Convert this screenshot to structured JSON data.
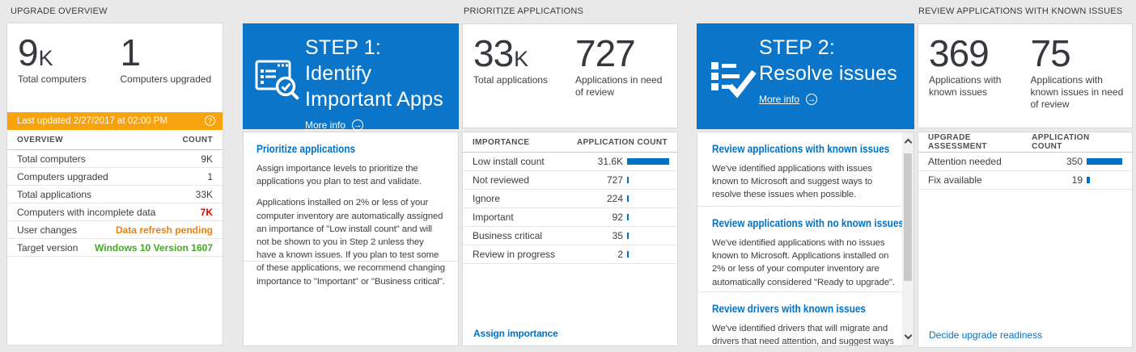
{
  "page": {
    "colors": {
      "accent": "#0072c6",
      "tile_blue": "#0a75c9",
      "bar_blue": "#0072c6",
      "banner_orange": "#f8a20d",
      "alert_red": "#e40000",
      "warn_orange": "#ef7d08",
      "ok_green": "#3dab1f",
      "background": "#e9e9e9"
    }
  },
  "icons": {
    "help": "?",
    "arrow": "→"
  },
  "headers": {
    "col1": "UPGRADE OVERVIEW",
    "col3": "PRIORITIZE APPLICATIONS",
    "col5": "REVIEW APPLICATIONS WITH KNOWN ISSUES"
  },
  "overview": {
    "stats": [
      {
        "value": "9",
        "suffix": "K",
        "label": "Total computers"
      },
      {
        "value": "1",
        "suffix": "",
        "label": "Computers upgraded"
      }
    ],
    "banner": {
      "text": "Last updated 2/27/2017 at 02:00 PM"
    },
    "table": {
      "headers": [
        "OVERVIEW",
        "COUNT"
      ],
      "rows": [
        {
          "label": "Total computers",
          "value": "9K",
          "style": ""
        },
        {
          "label": "Computers upgraded",
          "value": "1",
          "style": ""
        },
        {
          "label": "Total applications",
          "value": "33K",
          "style": ""
        },
        {
          "label": "Computers with incomplete data",
          "value": "7K",
          "style": "red"
        },
        {
          "label": "User changes",
          "value": "Data refresh pending",
          "style": "orange"
        },
        {
          "label": "Target version",
          "value": "Windows 10 Version 1607",
          "style": "green"
        }
      ]
    }
  },
  "step1": {
    "title": "STEP 1: Identify Important Apps",
    "more_info": "More info",
    "panel": {
      "heading": "Prioritize applications",
      "paragraphs": [
        "Assign importance levels to prioritize the applications you plan to test and validate.",
        "Applications installed on 2% or less of your computer inventory are automatically assigned an importance of \"Low install count\" and will not be shown to you in Step 2 unless they have a known issues. If you plan to test some of these applications, we recommend changing importance to \"Important\" or \"Business critical\"."
      ]
    }
  },
  "prioritize": {
    "stats": [
      {
        "value": "33",
        "suffix": "K",
        "label": "Total applications"
      },
      {
        "value": "727",
        "suffix": "",
        "label": "Applications in need of review"
      }
    ],
    "table": {
      "headers": [
        "IMPORTANCE",
        "APPLICATION COUNT"
      ],
      "rows": [
        {
          "label": "Low install count",
          "value": "31.6K",
          "num": 31600
        },
        {
          "label": "Not reviewed",
          "value": "727",
          "num": 727
        },
        {
          "label": "Ignore",
          "value": "224",
          "num": 224
        },
        {
          "label": "Important",
          "value": "92",
          "num": 92
        },
        {
          "label": "Business critical",
          "value": "35",
          "num": 35
        },
        {
          "label": "Review in progress",
          "value": "2",
          "num": 2
        }
      ]
    },
    "link": "Assign importance"
  },
  "step2": {
    "title": "STEP 2: Resolve issues",
    "more_info": "More info",
    "sections": [
      {
        "heading": "Review applications with known issues",
        "body": "We've identified applications with issues known to Microsoft and suggest ways to resolve these issues when possible."
      },
      {
        "heading": "Review applications with no known issues",
        "body": "We've identified applications with no issues known to Microsoft. Applications installed on 2% or less of your computer inventory are automatically considered \"Ready to upgrade\"."
      },
      {
        "heading": "Review drivers with known issues",
        "body": "We've identified drivers that will migrate and drivers that need attention, and suggest ways to resolve these issues when possible."
      }
    ]
  },
  "review": {
    "stats": [
      {
        "value": "369",
        "suffix": "",
        "label": "Applications with known issues"
      },
      {
        "value": "75",
        "suffix": "",
        "label": "Applications with known issues in need of review"
      }
    ],
    "table": {
      "headers": [
        "UPGRADE ASSESSMENT",
        "APPLICATION COUNT"
      ],
      "rows": [
        {
          "label": "Attention needed",
          "value": "350",
          "num": 350
        },
        {
          "label": "Fix available",
          "value": "19",
          "num": 19
        }
      ]
    },
    "link": "Decide upgrade readiness"
  }
}
